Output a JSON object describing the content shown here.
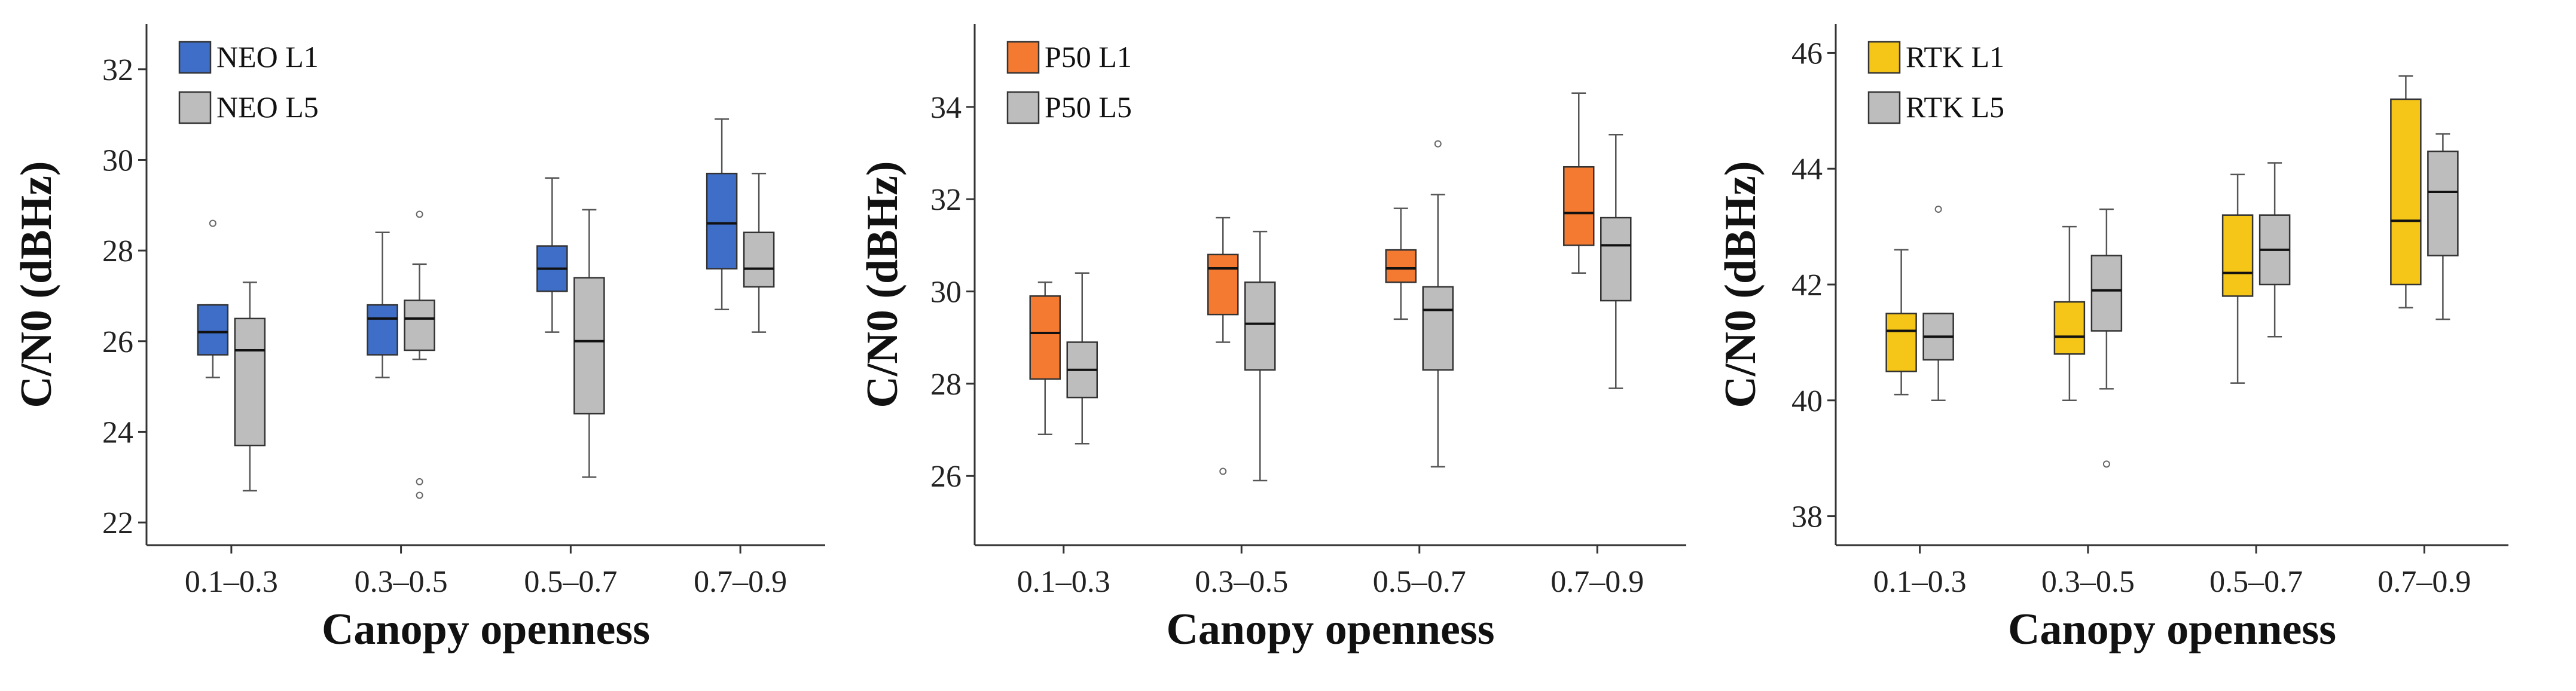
{
  "chart_data": [
    {
      "type": "box",
      "title": "",
      "xlabel": "Canopy openness",
      "ylabel": "C/N0 (dBHz)",
      "categories": [
        "0.1–0.3",
        "0.3–0.5",
        "0.5–0.7",
        "0.7–0.9"
      ],
      "ylim": [
        21.5,
        33.0
      ],
      "yticks": [
        22,
        24,
        26,
        28,
        30,
        32
      ],
      "legend_position": "top-left",
      "series": [
        {
          "name": "NEO  L1",
          "color": "#3e6ec7",
          "boxes": [
            {
              "min": 25.2,
              "q1": 25.7,
              "median": 26.2,
              "q3": 26.8,
              "max": 26.8,
              "outliers": [
                28.6
              ]
            },
            {
              "min": 25.2,
              "q1": 25.7,
              "median": 26.5,
              "q3": 26.8,
              "max": 28.4,
              "outliers": []
            },
            {
              "min": 26.2,
              "q1": 27.1,
              "median": 27.6,
              "q3": 28.1,
              "max": 29.6,
              "outliers": []
            },
            {
              "min": 26.7,
              "q1": 27.6,
              "median": 28.6,
              "q3": 29.7,
              "max": 30.9,
              "outliers": []
            }
          ]
        },
        {
          "name": "NEO  L5",
          "color": "#bdbdbd",
          "boxes": [
            {
              "min": 22.7,
              "q1": 23.7,
              "median": 25.8,
              "q3": 26.5,
              "max": 27.3,
              "outliers": []
            },
            {
              "min": 25.6,
              "q1": 25.8,
              "median": 26.5,
              "q3": 26.9,
              "max": 27.7,
              "outliers": [
                28.8,
                22.9,
                22.6
              ]
            },
            {
              "min": 23.0,
              "q1": 24.4,
              "median": 26.0,
              "q3": 27.4,
              "max": 28.9,
              "outliers": []
            },
            {
              "min": 26.2,
              "q1": 27.2,
              "median": 27.6,
              "q3": 28.4,
              "max": 29.7,
              "outliers": []
            }
          ]
        }
      ]
    },
    {
      "type": "box",
      "title": "",
      "xlabel": "Canopy openness",
      "ylabel": "C/N0 (dBHz)",
      "categories": [
        "0.1–0.3",
        "0.3–0.5",
        "0.5–0.7",
        "0.7–0.9"
      ],
      "ylim": [
        24.5,
        35.8
      ],
      "yticks": [
        26,
        28,
        30,
        32,
        34
      ],
      "legend_position": "top-left",
      "series": [
        {
          "name": "P50  L1",
          "color": "#f47a31",
          "boxes": [
            {
              "min": 26.9,
              "q1": 28.1,
              "median": 29.1,
              "q3": 29.9,
              "max": 30.2,
              "outliers": []
            },
            {
              "min": 28.9,
              "q1": 29.5,
              "median": 30.5,
              "q3": 30.8,
              "max": 31.6,
              "outliers": [
                26.1
              ]
            },
            {
              "min": 29.4,
              "q1": 30.2,
              "median": 30.5,
              "q3": 30.9,
              "max": 31.8,
              "outliers": []
            },
            {
              "min": 30.4,
              "q1": 31.0,
              "median": 31.7,
              "q3": 32.7,
              "max": 34.3,
              "outliers": []
            }
          ]
        },
        {
          "name": "P50  L5",
          "color": "#bdbdbd",
          "boxes": [
            {
              "min": 26.7,
              "q1": 27.7,
              "median": 28.3,
              "q3": 28.9,
              "max": 30.4,
              "outliers": []
            },
            {
              "min": 25.9,
              "q1": 28.3,
              "median": 29.3,
              "q3": 30.2,
              "max": 31.3,
              "outliers": []
            },
            {
              "min": 26.2,
              "q1": 28.3,
              "median": 29.6,
              "q3": 30.1,
              "max": 32.1,
              "outliers": [
                33.2
              ]
            },
            {
              "min": 27.9,
              "q1": 29.8,
              "median": 31.0,
              "q3": 31.6,
              "max": 33.4,
              "outliers": []
            }
          ]
        }
      ]
    },
    {
      "type": "box",
      "title": "",
      "xlabel": "Canopy openness",
      "ylabel": "C/N0 (dBHz)",
      "categories": [
        "0.1–0.3",
        "0.3–0.5",
        "0.5–0.7",
        "0.7–0.9"
      ],
      "ylim": [
        37.5,
        46.5
      ],
      "yticks": [
        38,
        40,
        42,
        44,
        46
      ],
      "legend_position": "top-left",
      "series": [
        {
          "name": "RTK  L1",
          "color": "#f5c518",
          "boxes": [
            {
              "min": 40.1,
              "q1": 40.5,
              "median": 41.2,
              "q3": 41.5,
              "max": 42.6,
              "outliers": []
            },
            {
              "min": 40.0,
              "q1": 40.8,
              "median": 41.1,
              "q3": 41.7,
              "max": 43.0,
              "outliers": []
            },
            {
              "min": 40.3,
              "q1": 41.8,
              "median": 42.2,
              "q3": 43.2,
              "max": 43.9,
              "outliers": []
            },
            {
              "min": 41.6,
              "q1": 42.0,
              "median": 43.1,
              "q3": 45.2,
              "max": 45.6,
              "outliers": []
            }
          ]
        },
        {
          "name": "RTK  L5",
          "color": "#bdbdbd",
          "boxes": [
            {
              "min": 40.0,
              "q1": 40.7,
              "median": 41.1,
              "q3": 41.5,
              "max": 41.5,
              "outliers": [
                43.3
              ]
            },
            {
              "min": 40.2,
              "q1": 41.2,
              "median": 41.9,
              "q3": 42.5,
              "max": 43.3,
              "outliers": [
                38.9
              ]
            },
            {
              "min": 41.1,
              "q1": 42.0,
              "median": 42.6,
              "q3": 43.2,
              "max": 44.1,
              "outliers": []
            },
            {
              "min": 41.4,
              "q1": 42.5,
              "median": 43.6,
              "q3": 44.3,
              "max": 44.6,
              "outliers": []
            }
          ]
        }
      ]
    }
  ]
}
